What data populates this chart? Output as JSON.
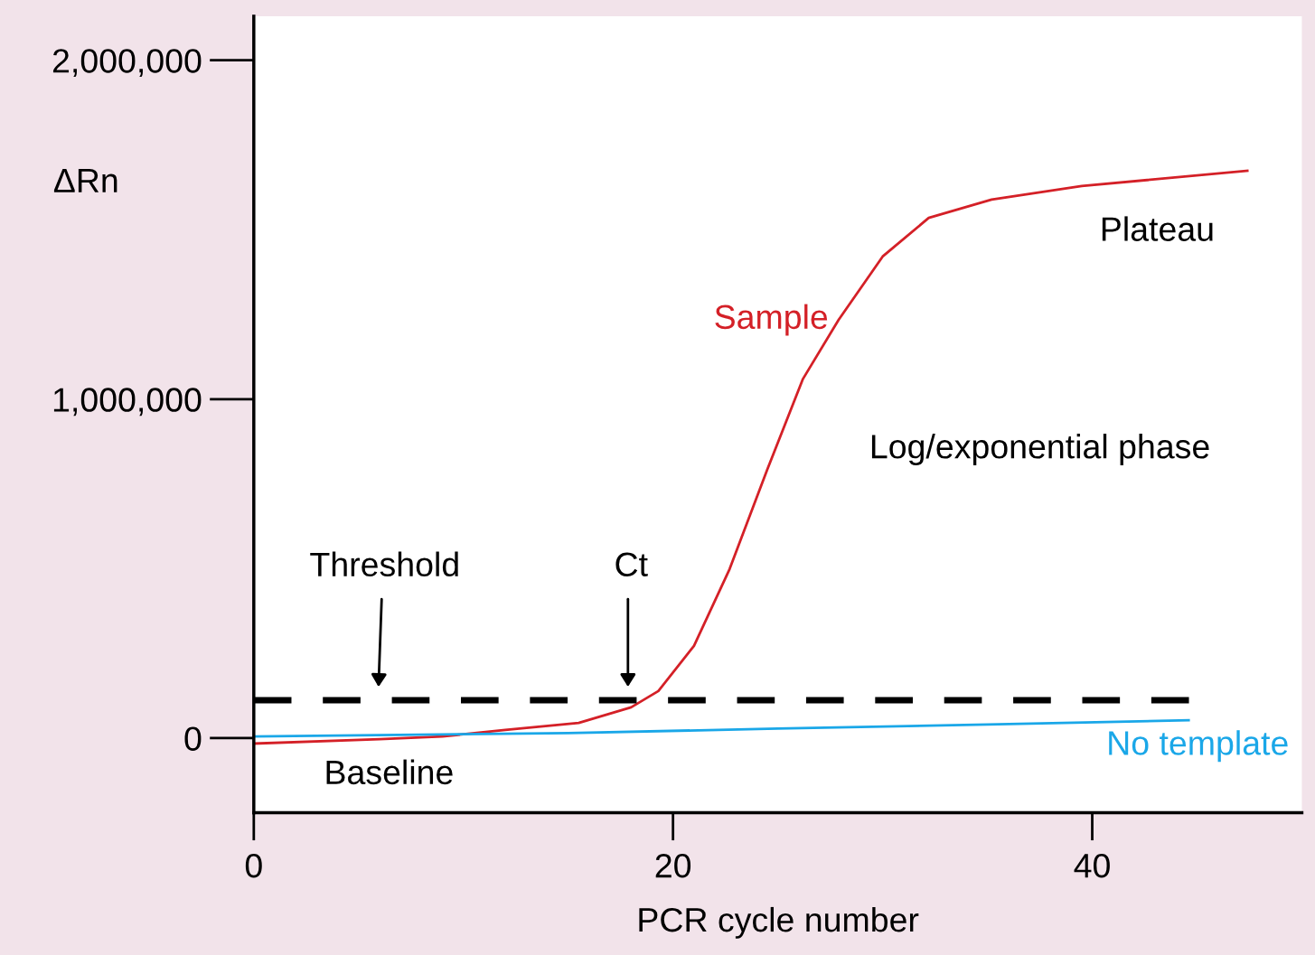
{
  "chart_data": {
    "type": "line",
    "xlabel": "PCR cycle number",
    "ylabel": "ΔRn",
    "xlim": [
      0,
      50
    ],
    "xticks": [
      0,
      20,
      40
    ],
    "ylim": [
      -220000,
      2130000
    ],
    "yticks": [
      0,
      {
        "value": 1000000,
        "label": "1,000,000"
      },
      {
        "value": 2000000,
        "label": "2,000,000"
      }
    ],
    "grid": false,
    "legend": false,
    "line_style": "solid",
    "series": [
      {
        "name": "Sample",
        "color": "#d42027",
        "x": [
          0,
          6,
          9,
          12,
          15.5,
          18,
          19.3,
          21,
          22.7,
          24.5,
          26.2,
          27.9,
          30,
          32.2,
          35.2,
          39.5,
          47.4
        ],
        "values": [
          -16000,
          -3000,
          5000,
          24000,
          45000,
          91000,
          139000,
          272000,
          499000,
          793000,
          1060000,
          1234000,
          1421000,
          1535000,
          1589000,
          1629000,
          1674000
        ]
      },
      {
        "name": "No template",
        "color": "#1aa7e8",
        "x": [
          0,
          15,
          25,
          35,
          44.6
        ],
        "values": [
          5000,
          15000,
          28000,
          40000,
          53000
        ]
      }
    ],
    "ref_lines": [
      {
        "axis": "y",
        "value": 112000,
        "color": "#000000",
        "line_style": "dashed"
      }
    ],
    "annotations": [
      "Threshold",
      "Ct",
      "Baseline",
      "Log/exponential phase",
      "Plateau"
    ]
  }
}
